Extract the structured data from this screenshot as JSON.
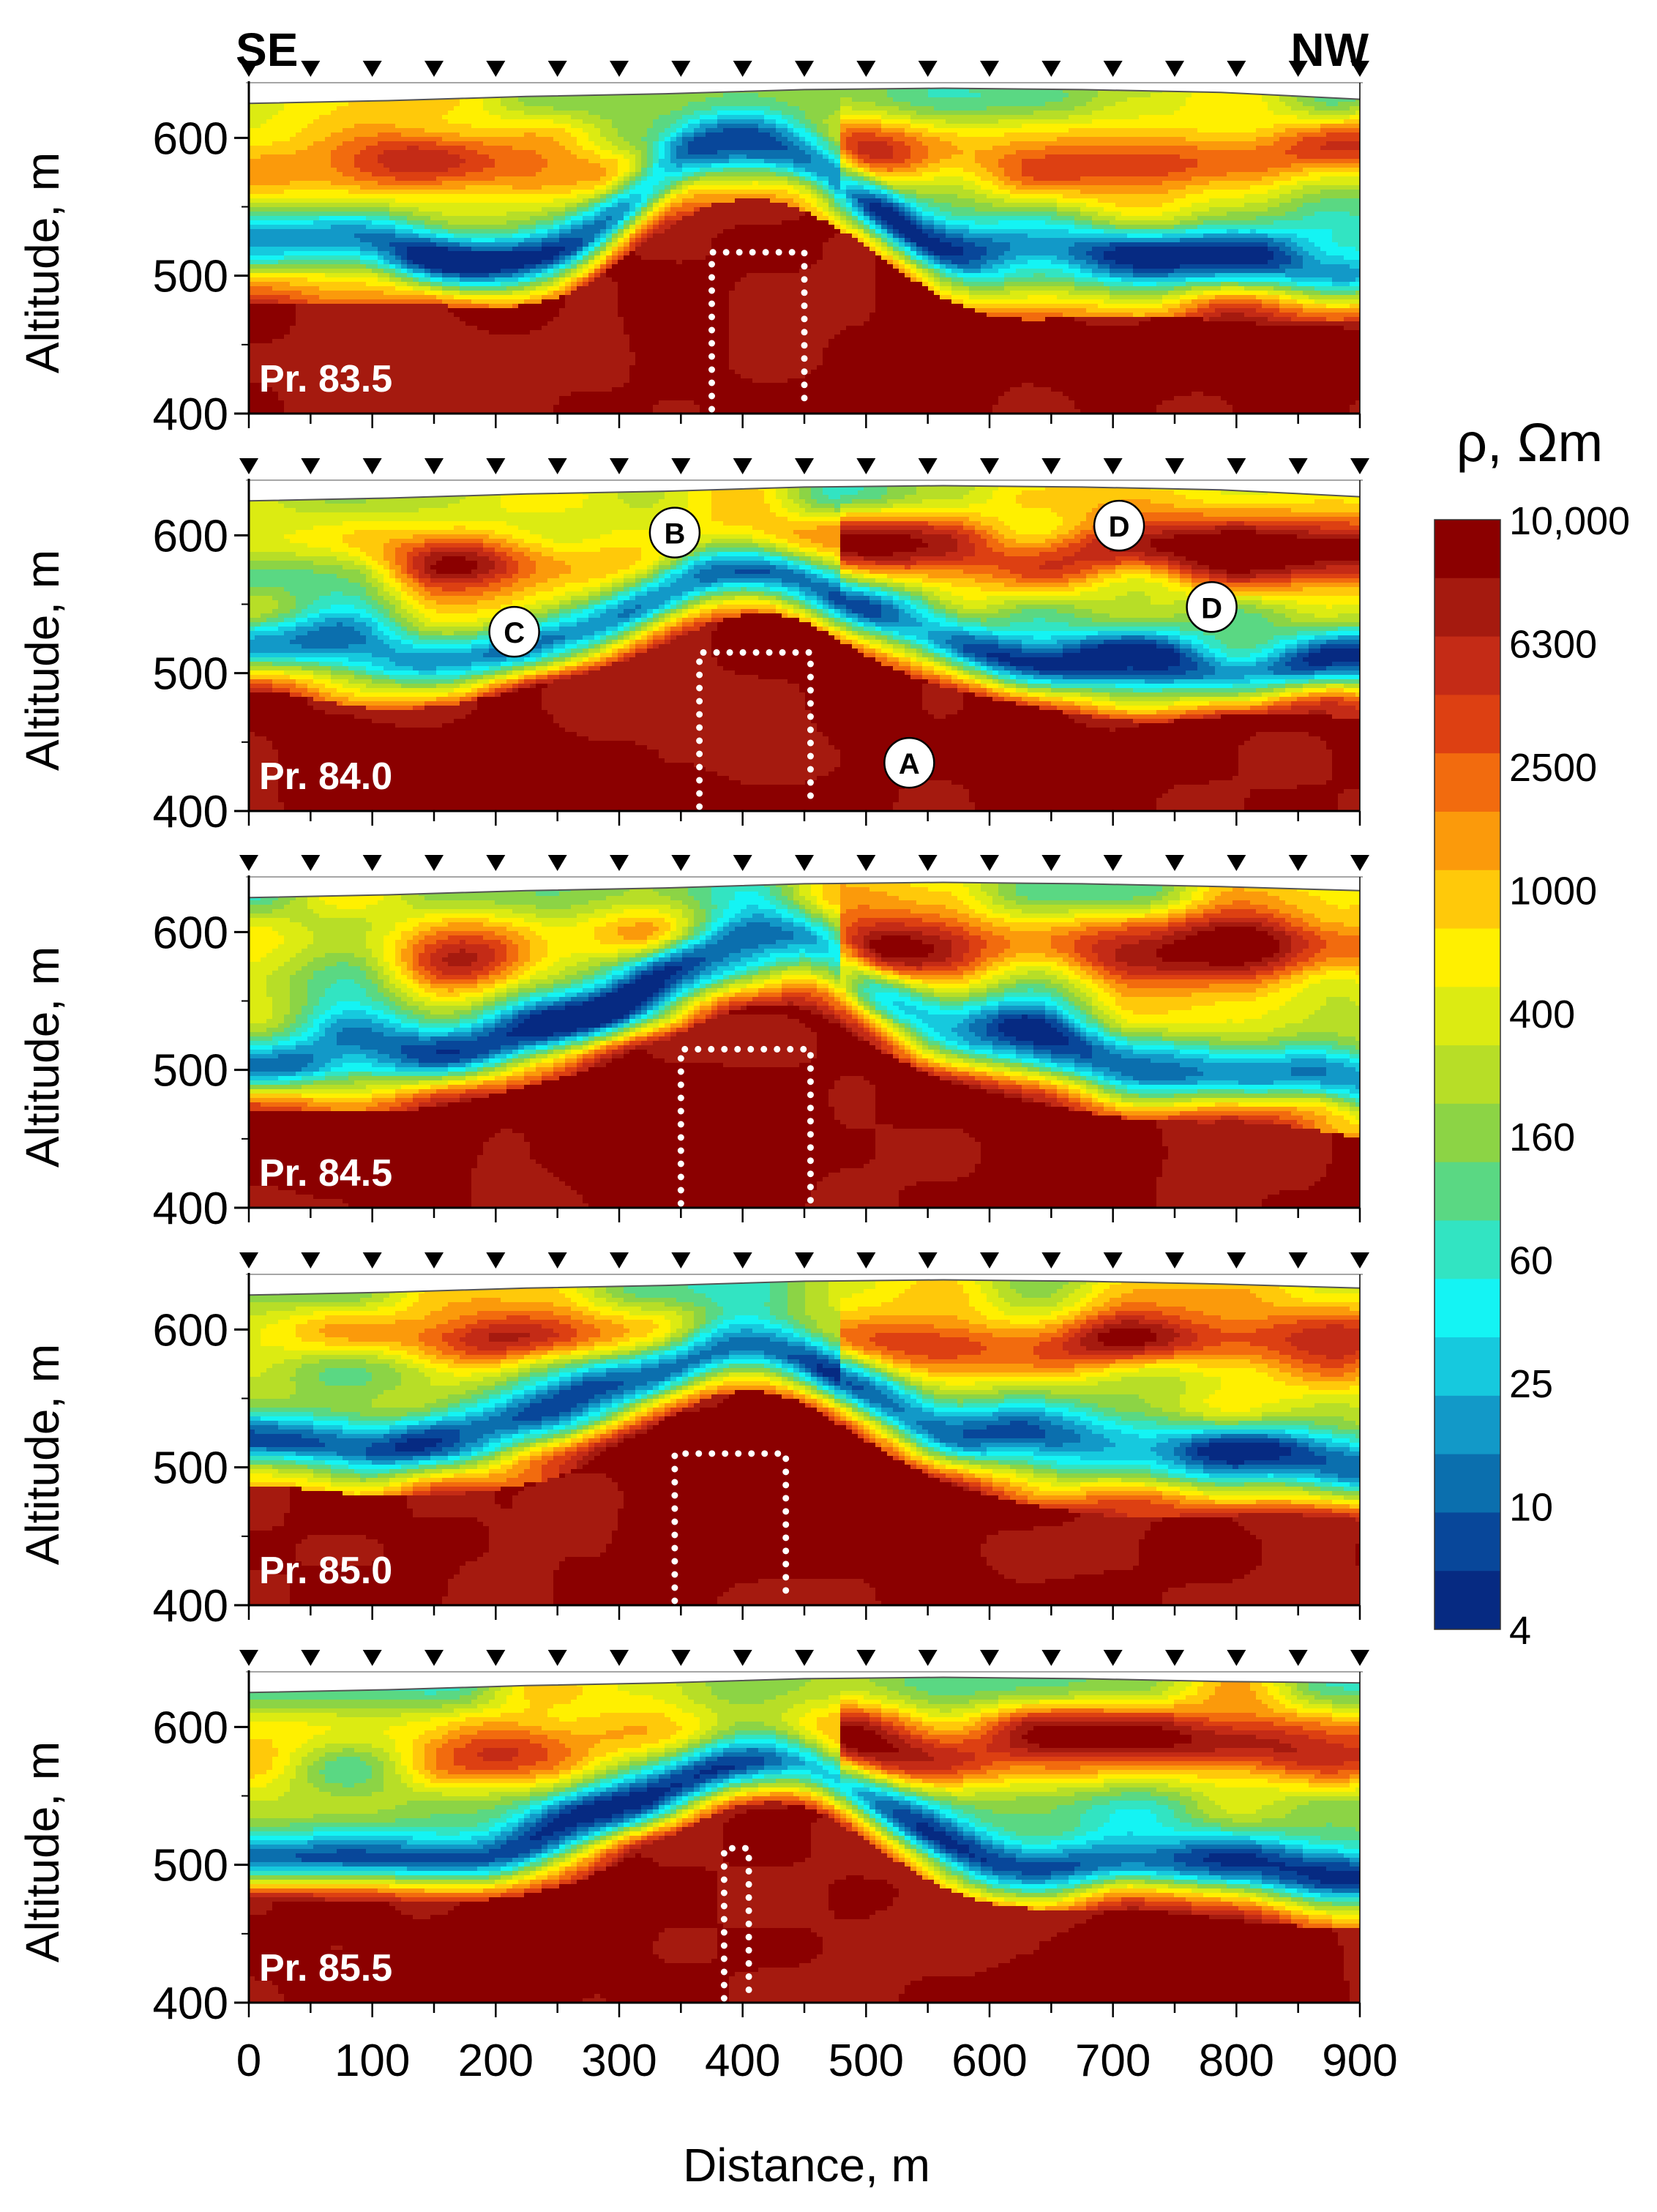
{
  "chart_data": {
    "type": "heatmap",
    "direction_labels": {
      "left": "SE",
      "right": "NW"
    },
    "xlabel": "Distance, m",
    "ylabel": "Altitude, m",
    "xlim": [
      0,
      900
    ],
    "ylim": [
      400,
      640
    ],
    "xticks": [
      "0",
      "100",
      "200",
      "300",
      "400",
      "500",
      "600",
      "700",
      "800",
      "900"
    ],
    "yticks": [
      "400",
      "500",
      "600"
    ],
    "electrode_spacing": 50,
    "colorbar": {
      "title": "ρ, Ωm",
      "labels": [
        "10,000",
        "6300",
        "2500",
        "1000",
        "400",
        "160",
        "60",
        "25",
        "10",
        "4"
      ],
      "colors": [
        "#8b0000",
        "#a51a0f",
        "#c42b16",
        "#dd4012",
        "#f26b0e",
        "#fb9a0b",
        "#ffc90a",
        "#fff000",
        "#dceb12",
        "#b7de27",
        "#8cd445",
        "#5ad883",
        "#32e4c2",
        "#14f4f4",
        "#16c9de",
        "#1299c8",
        "#0b6fae",
        "#08479a",
        "#062a82"
      ]
    },
    "profiles": [
      {
        "name": "Pr. 83.5",
        "dotted_outline": {
          "x_left": 375,
          "x_right": 450,
          "top": 517
        },
        "markers": [],
        "surface": [
          625,
          627,
          630,
          632,
          635,
          636,
          635,
          633,
          628
        ]
      },
      {
        "name": "Pr. 84.0",
        "dotted_outline": {
          "x_left": 365,
          "x_right": 455,
          "top": 515
        },
        "markers": [
          {
            "label": "B",
            "x": 345,
            "y": 602
          },
          {
            "label": "C",
            "x": 215,
            "y": 530
          },
          {
            "label": "D",
            "x": 705,
            "y": 607
          },
          {
            "label": "D",
            "x": 780,
            "y": 548
          },
          {
            "label": "A",
            "x": 535,
            "y": 435
          }
        ],
        "surface": [
          625,
          627,
          630,
          632,
          635,
          636,
          635,
          633,
          628
        ]
      },
      {
        "name": "Pr. 84.5",
        "dotted_outline": {
          "x_left": 350,
          "x_right": 455,
          "top": 515
        },
        "markers": [],
        "surface": [
          625,
          627,
          630,
          632,
          635,
          636,
          635,
          633,
          630
        ]
      },
      {
        "name": "Pr. 85.0",
        "dotted_outline": {
          "x_left": 345,
          "x_right": 435,
          "top": 510
        },
        "markers": [],
        "surface": [
          625,
          627,
          630,
          632,
          635,
          636,
          635,
          633,
          630
        ]
      },
      {
        "name": "Pr. 85.5",
        "dotted_outline": {
          "x_left": 385,
          "x_right": 405,
          "top": 512
        },
        "markers": [],
        "surface": [
          625,
          627,
          630,
          632,
          635,
          636,
          635,
          633,
          632
        ]
      }
    ]
  }
}
